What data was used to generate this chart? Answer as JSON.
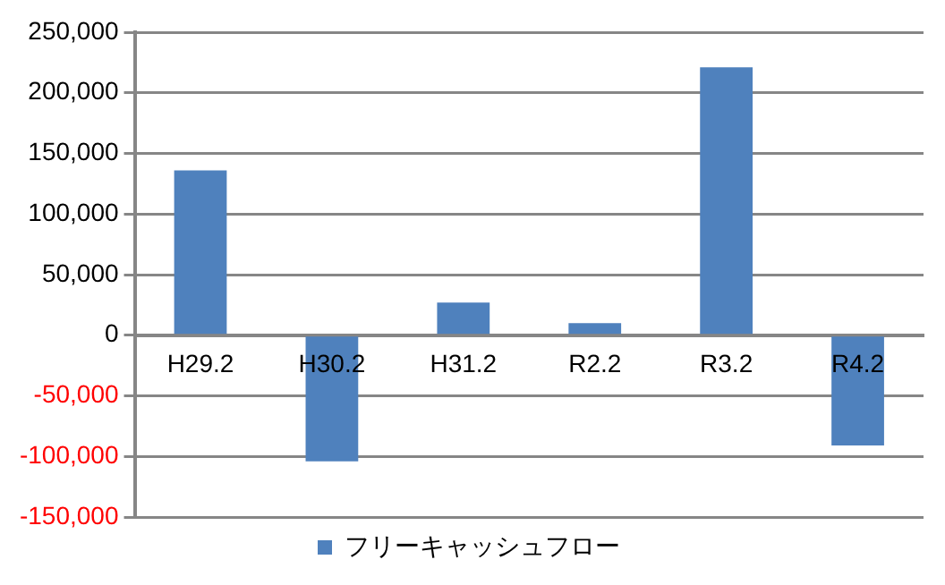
{
  "chart_data": {
    "type": "bar",
    "categories": [
      "H29.2",
      "H30.2",
      "H31.2",
      "R2.2",
      "R3.2",
      "R4.2"
    ],
    "series": [
      {
        "name": "フリーキャッシュフロー",
        "color": "#4f81bd",
        "values": [
          136000,
          -104000,
          27000,
          10000,
          221000,
          -91000
        ]
      }
    ],
    "ylim": [
      -150000,
      250000
    ],
    "yticks": [
      {
        "value": -150000,
        "label": "-150,000"
      },
      {
        "value": -100000,
        "label": "-100,000"
      },
      {
        "value": -50000,
        "label": "-50,000"
      },
      0,
      {
        "value": 50000,
        "label": "50,000"
      },
      {
        "value": 100000,
        "label": "100,000"
      },
      {
        "value": 150000,
        "label": "150,000"
      },
      {
        "value": 200000,
        "label": "200,000"
      },
      {
        "value": 250000,
        "label": "250,000"
      }
    ],
    "grid": "y",
    "legend": "bottom"
  }
}
